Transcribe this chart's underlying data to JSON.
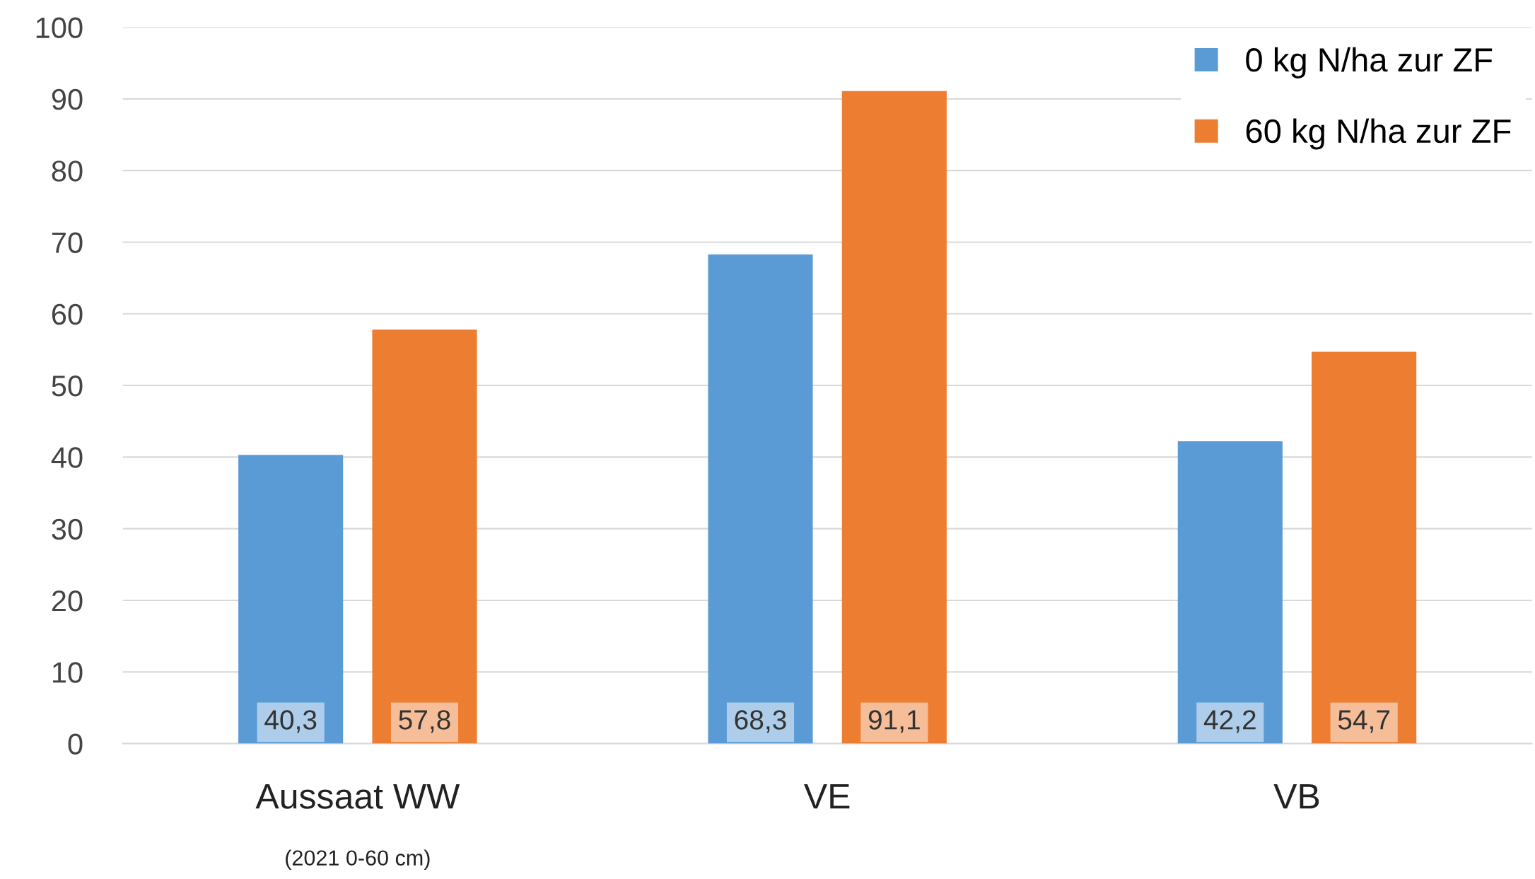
{
  "chart_data": {
    "type": "bar",
    "categories": [
      "Aussaat WW",
      "VE",
      "VB"
    ],
    "series": [
      {
        "name": "0 kg N/ha zur ZF",
        "color": "#5b9bd5",
        "values": [
          40.3,
          68.3,
          42.2
        ],
        "value_labels": [
          "40,3",
          "68,3",
          "42,2"
        ]
      },
      {
        "name": "60 kg N/ha zur ZF",
        "color": "#ed7d31",
        "values": [
          57.8,
          91.1,
          54.7
        ],
        "value_labels": [
          "57,8",
          "91,1",
          "54,7"
        ]
      }
    ],
    "annotations": [
      "(2021 0-60 cm)"
    ],
    "ylim": [
      0,
      100
    ],
    "yticks": [
      0,
      10,
      20,
      30,
      40,
      50,
      60,
      70,
      80,
      90,
      100
    ],
    "grid": "y",
    "legend": "top right"
  }
}
